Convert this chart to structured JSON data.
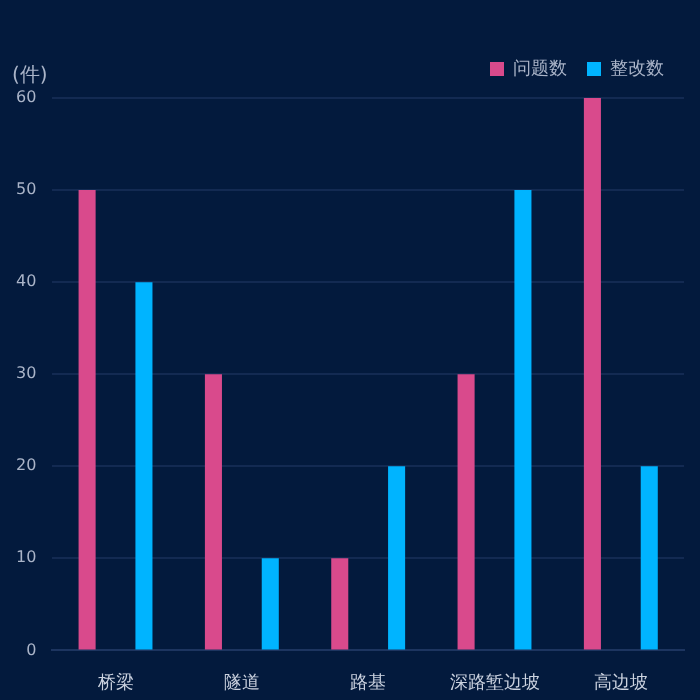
{
  "chart_data": {
    "type": "bar",
    "ylabel": "(件)",
    "categories": [
      "桥梁",
      "隧道",
      "路基",
      "深路堑边坡",
      "高边坡"
    ],
    "series": [
      {
        "name": "问题数",
        "color": "#d94a8c",
        "values": [
          50,
          30,
          10,
          30,
          60
        ]
      },
      {
        "name": "整改数",
        "color": "#00b4ff",
        "values": [
          40,
          10,
          20,
          50,
          20
        ]
      }
    ],
    "ylim": [
      0,
      60
    ],
    "yticks": [
      0,
      10,
      20,
      30,
      40,
      50,
      60
    ],
    "grid": "y",
    "legend": "top right"
  }
}
